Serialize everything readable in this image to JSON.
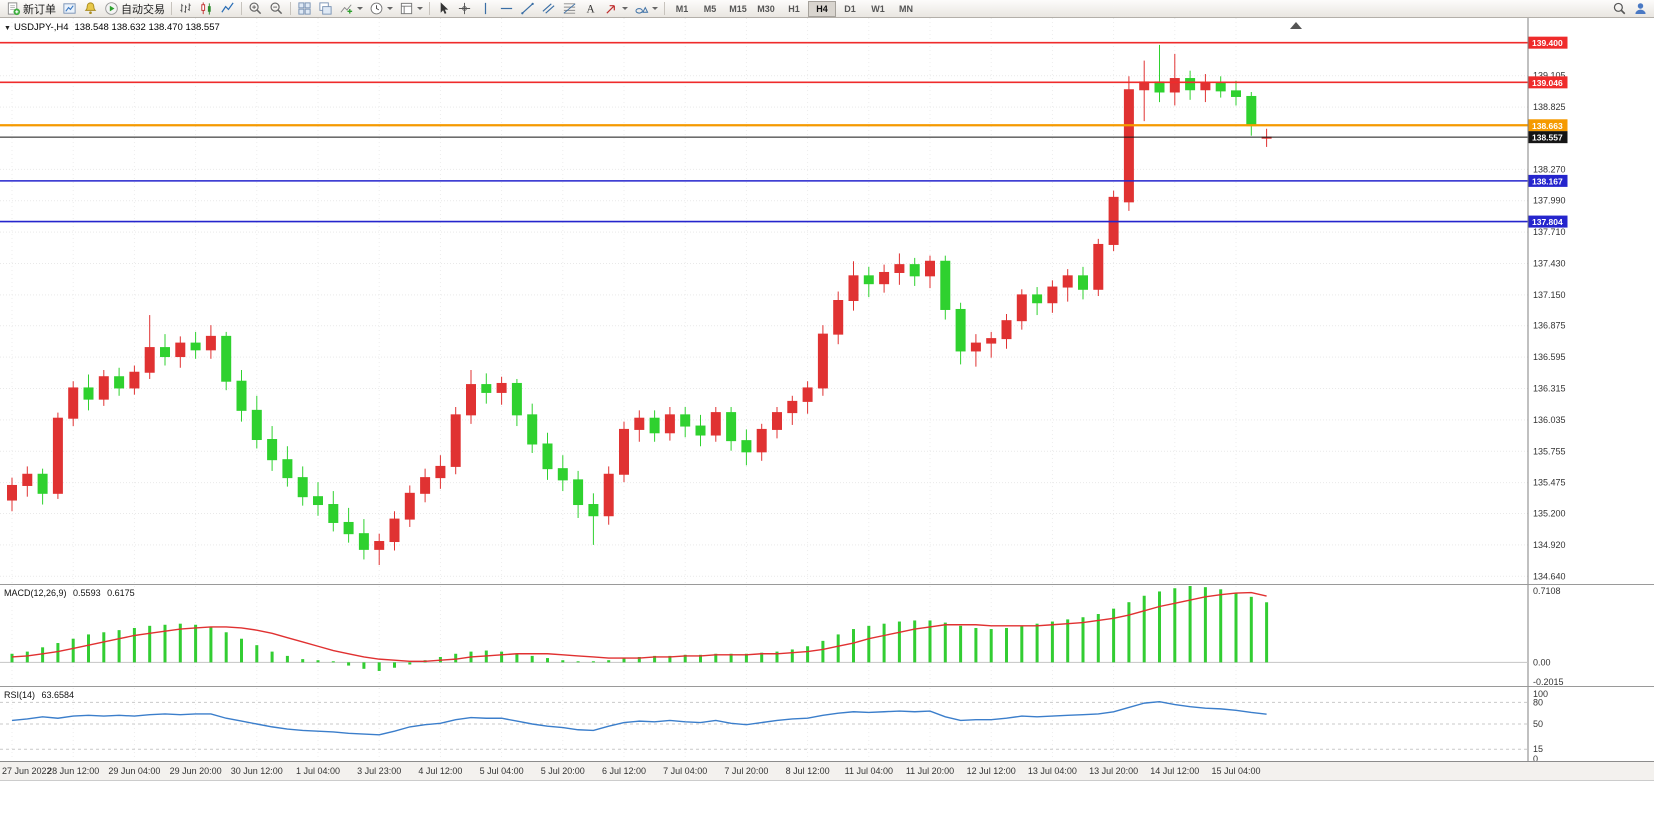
{
  "toolbar": {
    "timeframes": [
      "M1",
      "M5",
      "M15",
      "M30",
      "H1",
      "H4",
      "D1",
      "W1",
      "MN"
    ],
    "active_timeframe": "H4",
    "items": [
      {
        "type": "button",
        "name": "new-order-button",
        "icon": "new-order-icon",
        "label": "新订单"
      },
      {
        "type": "icon",
        "name": "profiles-button",
        "icon": "profiles-icon"
      },
      {
        "type": "icon",
        "name": "alerts-button",
        "icon": "alerts-icon"
      },
      {
        "type": "button",
        "name": "autotrading-button",
        "icon": "autotrading-icon",
        "label": "自动交易"
      },
      {
        "type": "sep"
      },
      {
        "type": "icon",
        "name": "bar-chart-button",
        "icon": "bar-chart-icon"
      },
      {
        "type": "icon",
        "name": "candlestick-button",
        "icon": "candlestick-icon"
      },
      {
        "type": "icon",
        "name": "line-chart-button",
        "icon": "line-chart-icon"
      },
      {
        "type": "sep"
      },
      {
        "type": "icon",
        "name": "zoom-in-button",
        "icon": "zoom-in-icon"
      },
      {
        "type": "icon",
        "name": "zoom-out-button",
        "icon": "zoom-out-icon"
      },
      {
        "type": "sep"
      },
      {
        "type": "icon",
        "name": "tile-windows-button",
        "icon": "tile-windows-icon"
      },
      {
        "type": "icon",
        "name": "cascade-windows-button",
        "icon": "cascade-windows-icon"
      },
      {
        "type": "icon",
        "name": "indicators-button",
        "icon": "indicators-icon",
        "caret": true
      },
      {
        "type": "icon",
        "name": "periods-button",
        "icon": "clock-icon",
        "caret": true
      },
      {
        "type": "icon",
        "name": "templates-button",
        "icon": "template-icon",
        "caret": true
      },
      {
        "type": "sep"
      },
      {
        "type": "icon",
        "name": "cursor-button",
        "icon": "cursor-icon"
      },
      {
        "type": "icon",
        "name": "crosshair-button",
        "icon": "crosshair-icon"
      },
      {
        "type": "icon",
        "name": "vertical-line-button",
        "icon": "vertical-line-icon"
      },
      {
        "type": "icon",
        "name": "horizontal-line-button",
        "icon": "horizontal-line-icon"
      },
      {
        "type": "icon",
        "name": "trendline-button",
        "icon": "trendline-icon"
      },
      {
        "type": "icon",
        "name": "channel-button",
        "icon": "channel-icon"
      },
      {
        "type": "icon",
        "name": "fibonacci-button",
        "icon": "fibonacci-icon"
      },
      {
        "type": "icon",
        "name": "text-button",
        "icon": "text-label-icon"
      },
      {
        "type": "icon",
        "name": "arrows-button",
        "icon": "arrow-icon",
        "caret": true
      },
      {
        "type": "icon",
        "name": "shapes-button",
        "icon": "shapes-icon",
        "caret": true
      },
      {
        "type": "sep"
      },
      {
        "type": "timeframes"
      }
    ],
    "right_items": [
      {
        "type": "icon",
        "name": "search-button",
        "icon": "search-icon"
      },
      {
        "type": "icon",
        "name": "account-button",
        "icon": "account-icon"
      }
    ]
  },
  "chart_header": {
    "collapse_glyph": "▼",
    "symbol_period": "USDJPY-,H4",
    "ohlc": "138.548 138.632 138.470 138.557"
  },
  "chart_data": {
    "type": "candlestick",
    "symbol": "USDJPY-",
    "timeframe": "H4",
    "up_color": "#e03232",
    "down_color": "#2fd12f",
    "y_range": [
      134.58,
      139.62
    ],
    "price_ticks": [
      "139.105",
      "138.825",
      "138.270",
      "137.990",
      "137.710",
      "137.430",
      "137.150",
      "136.875",
      "136.595",
      "136.315",
      "136.035",
      "135.755",
      "135.475",
      "135.200",
      "134.920",
      "134.640"
    ],
    "hlines": [
      {
        "price": 139.4,
        "label": "139.400",
        "color": "#ef2b2b",
        "width": 1.6
      },
      {
        "price": 139.046,
        "label": "139.046",
        "color": "#ef2b2b",
        "width": 1.6
      },
      {
        "price": 138.663,
        "label": "138.663",
        "color": "#f59a00",
        "width": 2.2
      },
      {
        "price": 138.557,
        "label": "138.557",
        "color": "#151515",
        "width": 1
      },
      {
        "price": 138.167,
        "label": "138.167",
        "color": "#2525cd",
        "width": 1.6
      },
      {
        "price": 137.804,
        "label": "137.804",
        "color": "#2525cd",
        "width": 1.6
      }
    ],
    "time_label_indices": [
      0,
      4,
      8,
      12,
      16,
      20,
      24,
      28,
      32,
      36,
      40,
      44,
      48,
      52,
      56,
      60,
      64,
      68,
      72,
      76,
      80
    ],
    "time_label_texts": [
      "27 Jun 2022",
      "28 Jun 12:00",
      "29 Jun 04:00",
      "29 Jun 20:00",
      "30 Jun 12:00",
      "1 Jul 04:00",
      "3 Jul 23:00",
      "4 Jul 12:00",
      "5 Jul 04:00",
      "5 Jul 20:00",
      "6 Jul 12:00",
      "7 Jul 04:00",
      "7 Jul 20:00",
      "8 Jul 12:00",
      "11 Jul 04:00",
      "11 Jul 20:00",
      "12 Jul 12:00",
      "13 Jul 04:00",
      "13 Jul 20:00",
      "14 Jul 12:00",
      "15 Jul 04:00"
    ],
    "candles": [
      [
        135.32,
        135.52,
        135.22,
        135.45
      ],
      [
        135.45,
        135.62,
        135.35,
        135.55
      ],
      [
        135.55,
        135.6,
        135.28,
        135.38
      ],
      [
        135.38,
        136.1,
        135.33,
        136.05
      ],
      [
        136.05,
        136.38,
        135.98,
        136.32
      ],
      [
        136.32,
        136.44,
        136.12,
        136.22
      ],
      [
        136.22,
        136.48,
        136.16,
        136.42
      ],
      [
        136.42,
        136.5,
        136.25,
        136.32
      ],
      [
        136.32,
        136.52,
        136.26,
        136.46
      ],
      [
        136.46,
        136.97,
        136.4,
        136.68
      ],
      [
        136.68,
        136.8,
        136.52,
        136.6
      ],
      [
        136.6,
        136.78,
        136.5,
        136.72
      ],
      [
        136.72,
        136.82,
        136.58,
        136.66
      ],
      [
        136.66,
        136.88,
        136.58,
        136.78
      ],
      [
        136.78,
        136.82,
        136.3,
        136.38
      ],
      [
        136.38,
        136.48,
        136.02,
        136.12
      ],
      [
        136.12,
        136.25,
        135.78,
        135.86
      ],
      [
        135.86,
        135.98,
        135.58,
        135.68
      ],
      [
        135.68,
        135.8,
        135.44,
        135.52
      ],
      [
        135.52,
        135.62,
        135.27,
        135.35
      ],
      [
        135.35,
        135.48,
        135.18,
        135.28
      ],
      [
        135.28,
        135.4,
        135.04,
        135.12
      ],
      [
        135.12,
        135.25,
        134.94,
        135.02
      ],
      [
        135.02,
        135.15,
        134.79,
        134.88
      ],
      [
        134.88,
        135.02,
        134.74,
        134.95
      ],
      [
        134.95,
        135.22,
        134.87,
        135.15
      ],
      [
        135.15,
        135.45,
        135.08,
        135.38
      ],
      [
        135.38,
        135.6,
        135.3,
        135.52
      ],
      [
        135.52,
        135.72,
        135.42,
        135.62
      ],
      [
        135.62,
        136.15,
        135.55,
        136.08
      ],
      [
        136.08,
        136.48,
        136.0,
        136.35
      ],
      [
        136.35,
        136.45,
        136.18,
        136.28
      ],
      [
        136.28,
        136.42,
        136.17,
        136.36
      ],
      [
        136.36,
        136.4,
        135.98,
        136.08
      ],
      [
        136.08,
        136.18,
        135.74,
        135.82
      ],
      [
        135.82,
        135.92,
        135.5,
        135.6
      ],
      [
        135.6,
        135.72,
        135.4,
        135.5
      ],
      [
        135.5,
        135.58,
        135.16,
        135.28
      ],
      [
        135.28,
        135.38,
        134.92,
        135.18
      ],
      [
        135.18,
        135.62,
        135.1,
        135.55
      ],
      [
        135.55,
        136.02,
        135.48,
        135.95
      ],
      [
        135.95,
        136.12,
        135.84,
        136.05
      ],
      [
        136.05,
        136.12,
        135.84,
        135.92
      ],
      [
        135.92,
        136.15,
        135.85,
        136.08
      ],
      [
        136.08,
        136.15,
        135.88,
        135.98
      ],
      [
        135.98,
        136.08,
        135.8,
        135.9
      ],
      [
        135.9,
        136.15,
        135.84,
        136.1
      ],
      [
        136.1,
        136.15,
        135.76,
        135.85
      ],
      [
        135.85,
        135.95,
        135.63,
        135.75
      ],
      [
        135.75,
        136.0,
        135.67,
        135.95
      ],
      [
        135.95,
        136.15,
        135.87,
        136.1
      ],
      [
        136.1,
        136.25,
        135.99,
        136.2
      ],
      [
        136.2,
        136.38,
        136.09,
        136.32
      ],
      [
        136.32,
        136.88,
        136.25,
        136.8
      ],
      [
        136.8,
        137.18,
        136.71,
        137.1
      ],
      [
        137.1,
        137.45,
        137.01,
        137.32
      ],
      [
        137.32,
        137.4,
        137.13,
        137.25
      ],
      [
        137.25,
        137.42,
        137.17,
        137.35
      ],
      [
        137.35,
        137.52,
        137.24,
        137.42
      ],
      [
        137.42,
        137.48,
        137.23,
        137.32
      ],
      [
        137.32,
        137.5,
        137.21,
        137.45
      ],
      [
        137.45,
        137.5,
        136.93,
        137.02
      ],
      [
        137.02,
        137.08,
        136.53,
        136.65
      ],
      [
        136.65,
        136.8,
        136.51,
        136.72
      ],
      [
        136.72,
        136.82,
        136.59,
        136.76
      ],
      [
        136.76,
        136.98,
        136.67,
        136.92
      ],
      [
        136.92,
        137.2,
        136.84,
        137.15
      ],
      [
        137.15,
        137.22,
        136.97,
        137.08
      ],
      [
        137.08,
        137.28,
        136.99,
        137.22
      ],
      [
        137.22,
        137.38,
        137.09,
        137.32
      ],
      [
        137.32,
        137.4,
        137.11,
        137.2
      ],
      [
        137.2,
        137.65,
        137.14,
        137.6
      ],
      [
        137.6,
        138.08,
        137.54,
        138.02
      ],
      [
        137.98,
        139.1,
        137.9,
        138.98
      ],
      [
        138.98,
        139.24,
        138.7,
        139.05
      ],
      [
        139.05,
        139.38,
        138.87,
        138.96
      ],
      [
        138.96,
        139.3,
        138.84,
        139.08
      ],
      [
        139.08,
        139.15,
        138.89,
        138.98
      ],
      [
        138.98,
        139.12,
        138.87,
        139.04
      ],
      [
        139.04,
        139.1,
        138.91,
        138.97
      ],
      [
        138.97,
        139.06,
        138.84,
        138.92
      ],
      [
        138.92,
        138.96,
        138.57,
        138.66
      ],
      [
        138.548,
        138.632,
        138.47,
        138.557
      ]
    ],
    "indicators": {
      "macd": {
        "name": "MACD(12,26,9)",
        "value_macd": "0.5593",
        "value_signal": "0.6175",
        "range": [
          -0.2015,
          0.7108
        ],
        "axis_labels": [
          "0.7108",
          "0.00",
          "-0.2015"
        ],
        "hist_color": "#32cd32",
        "signal_color": "#e03131",
        "hist": [
          0.08,
          0.1,
          0.14,
          0.18,
          0.22,
          0.26,
          0.28,
          0.3,
          0.32,
          0.34,
          0.35,
          0.36,
          0.35,
          0.33,
          0.28,
          0.22,
          0.16,
          0.1,
          0.06,
          0.03,
          0.02,
          0.01,
          -0.03,
          -0.06,
          -0.08,
          -0.05,
          -0.02,
          0.02,
          0.05,
          0.08,
          0.1,
          0.11,
          0.1,
          0.08,
          0.06,
          0.04,
          0.02,
          0.01,
          0.01,
          0.02,
          0.04,
          0.05,
          0.06,
          0.06,
          0.07,
          0.07,
          0.08,
          0.08,
          0.08,
          0.09,
          0.1,
          0.12,
          0.15,
          0.2,
          0.26,
          0.31,
          0.34,
          0.36,
          0.38,
          0.39,
          0.39,
          0.37,
          0.34,
          0.32,
          0.31,
          0.32,
          0.34,
          0.36,
          0.38,
          0.4,
          0.42,
          0.45,
          0.5,
          0.56,
          0.62,
          0.66,
          0.69,
          0.7108,
          0.7,
          0.68,
          0.65,
          0.61,
          0.5593
        ],
        "signal": [
          0.05,
          0.06,
          0.08,
          0.1,
          0.13,
          0.16,
          0.19,
          0.22,
          0.25,
          0.27,
          0.29,
          0.31,
          0.32,
          0.33,
          0.33,
          0.32,
          0.3,
          0.27,
          0.23,
          0.19,
          0.15,
          0.11,
          0.08,
          0.05,
          0.03,
          0.02,
          0.01,
          0.01,
          0.02,
          0.03,
          0.05,
          0.06,
          0.07,
          0.08,
          0.08,
          0.08,
          0.07,
          0.06,
          0.05,
          0.04,
          0.04,
          0.04,
          0.05,
          0.05,
          0.06,
          0.06,
          0.07,
          0.07,
          0.07,
          0.08,
          0.08,
          0.09,
          0.1,
          0.12,
          0.15,
          0.18,
          0.22,
          0.25,
          0.28,
          0.31,
          0.33,
          0.35,
          0.35,
          0.35,
          0.34,
          0.34,
          0.34,
          0.34,
          0.35,
          0.36,
          0.37,
          0.39,
          0.41,
          0.44,
          0.48,
          0.52,
          0.55,
          0.58,
          0.61,
          0.63,
          0.645,
          0.65,
          0.6175
        ]
      },
      "rsi": {
        "name": "RSI(14)",
        "value": "63.6584",
        "range": [
          0,
          100
        ],
        "levels": [
          80,
          50,
          15
        ],
        "axis_labels": [
          "100",
          "80",
          "50",
          "15",
          "0"
        ],
        "line_color": "#3b7ecb",
        "values": [
          55,
          57,
          60,
          58,
          61,
          62,
          61,
          62,
          61,
          63,
          64,
          63,
          64,
          64,
          58,
          54,
          50,
          46,
          43,
          41,
          40,
          39,
          37,
          36,
          35,
          40,
          46,
          49,
          51,
          56,
          59,
          58,
          58,
          54,
          50,
          47,
          45,
          42,
          41,
          47,
          52,
          54,
          53,
          55,
          53,
          52,
          55,
          51,
          49,
          52,
          55,
          57,
          58,
          62,
          65,
          67,
          66,
          67,
          68,
          67,
          68,
          60,
          55,
          56,
          56,
          58,
          61,
          60,
          61,
          62,
          63,
          64,
          67,
          73,
          79,
          81,
          77,
          74,
          72,
          71,
          69,
          66,
          63.6584
        ]
      }
    }
  }
}
